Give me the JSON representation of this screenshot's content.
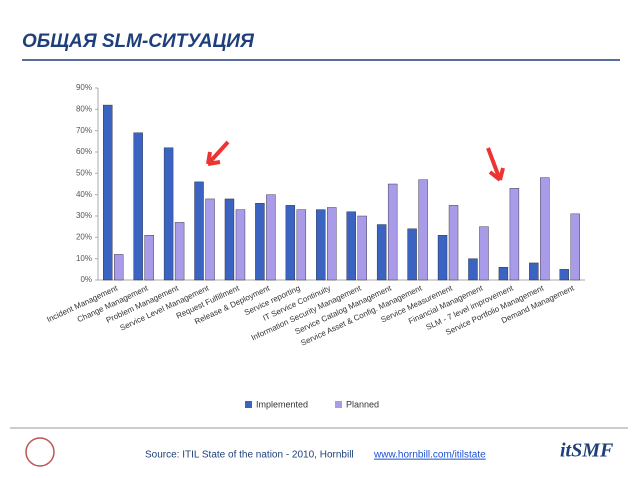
{
  "title": "ОБЩАЯ SLM-СИТУАЦИЯ",
  "chart_data": {
    "type": "bar",
    "categories": [
      "Incident Management",
      "Change Management",
      "Problem Management",
      "Service Level Management",
      "Request Fulfillment",
      "Release & Deployment",
      "Service reporting",
      "IT Service Continuity",
      "Information Security Management",
      "Service Catalog Management",
      "Service Asset & Config. Management",
      "Service Measurement",
      "Financial Management",
      "SLM - 7 level improvement",
      "Service Portfolio Management",
      "Demand Management"
    ],
    "series": [
      {
        "name": "Implemented",
        "color": "#3a63c2",
        "values": [
          82,
          69,
          62,
          46,
          38,
          36,
          35,
          33,
          32,
          26,
          24,
          21,
          10,
          6,
          8,
          5
        ]
      },
      {
        "name": "Planned",
        "color": "#a99be8",
        "values": [
          12,
          21,
          27,
          38,
          33,
          40,
          33,
          34,
          30,
          45,
          47,
          35,
          25,
          43,
          48,
          31
        ]
      }
    ],
    "ylim": [
      0,
      90
    ],
    "yticks": [
      {
        "value": 0,
        "label": "0%"
      },
      {
        "value": 10,
        "label": "10%"
      },
      {
        "value": 20,
        "label": "20%"
      },
      {
        "value": 30,
        "label": "30%"
      },
      {
        "value": 40,
        "label": "40%"
      },
      {
        "value": 50,
        "label": "50%"
      },
      {
        "value": 60,
        "label": "60%"
      },
      {
        "value": 70,
        "label": "70%"
      },
      {
        "value": 80,
        "label": "80%"
      },
      {
        "value": 90,
        "label": "90%"
      }
    ],
    "grid": false,
    "legend": "bottom"
  },
  "footer": {
    "source": "Source: ITIL State of the nation - 2010, Hornbill",
    "link": "www.hornbill.com/itilstate",
    "logo": "itSMF"
  }
}
